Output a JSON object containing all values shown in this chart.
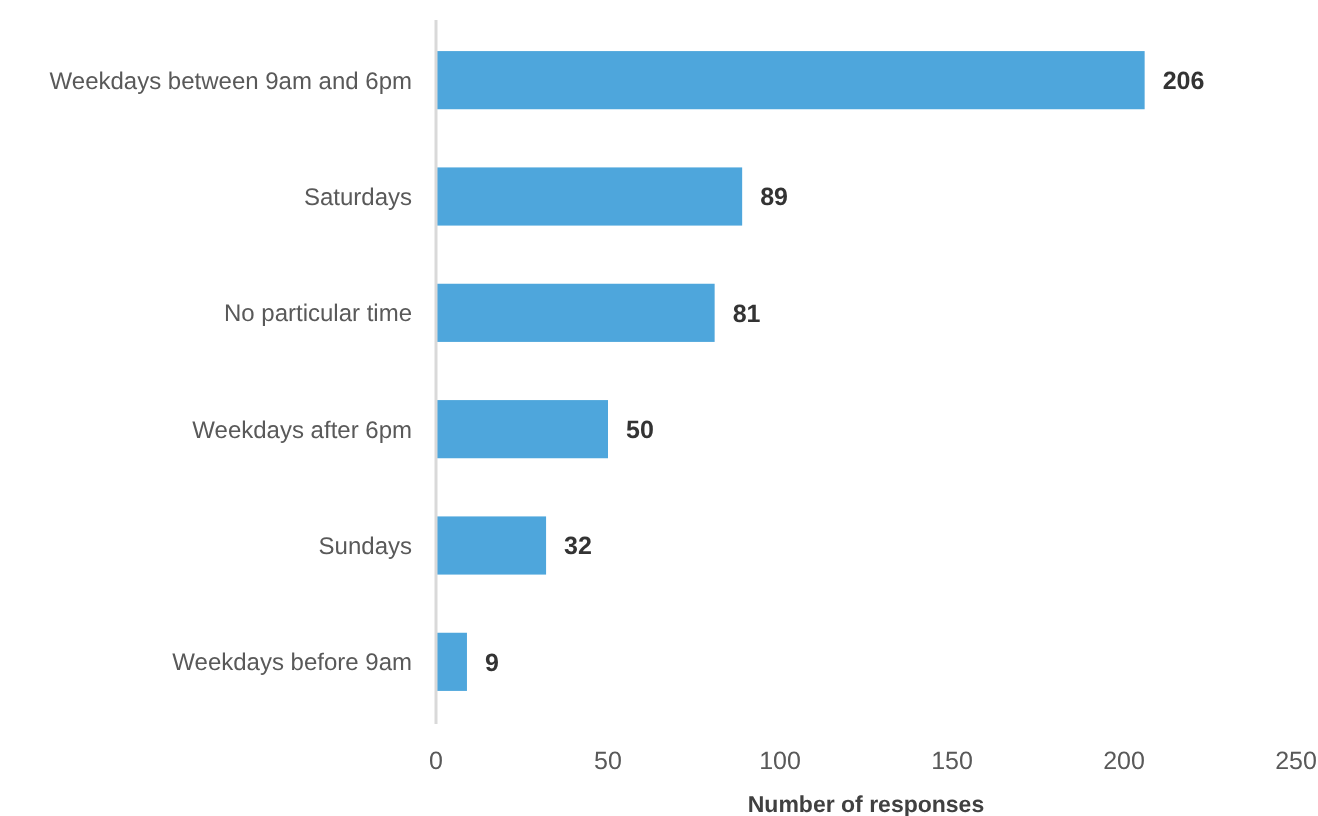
{
  "chart_data": {
    "type": "bar",
    "orientation": "horizontal",
    "categories": [
      "Weekdays between 9am and 6pm",
      "Saturdays",
      "No particular time",
      "Weekdays after 6pm",
      "Sundays",
      "Weekdays before 9am"
    ],
    "values": [
      206,
      89,
      81,
      50,
      32,
      9
    ],
    "color": "#4ea6dc",
    "xlim": [
      0,
      250
    ],
    "xticks": [
      0,
      50,
      100,
      150,
      200,
      250
    ],
    "xlabel": "Number of responses",
    "data_labels": true
  }
}
